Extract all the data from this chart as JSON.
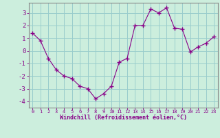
{
  "x": [
    0,
    1,
    2,
    3,
    4,
    5,
    6,
    7,
    8,
    9,
    10,
    11,
    12,
    13,
    14,
    15,
    16,
    17,
    18,
    19,
    20,
    21,
    22,
    23
  ],
  "y": [
    1.4,
    0.8,
    -0.6,
    -1.5,
    -2.0,
    -2.2,
    -2.8,
    -3.0,
    -3.8,
    -3.4,
    -2.8,
    -0.9,
    -0.6,
    2.0,
    2.0,
    3.3,
    3.0,
    3.4,
    1.8,
    1.7,
    -0.1,
    0.3,
    0.6,
    1.1
  ],
  "line_color": "#880088",
  "marker": "+",
  "marker_size": 5,
  "bg_color": "#cceedd",
  "grid_color": "#99cccc",
  "ylabel_ticks": [
    3,
    2,
    1,
    0,
    -1,
    -2,
    -3,
    -4
  ],
  "ylim": [
    -4.5,
    3.8
  ],
  "xlim": [
    -0.5,
    23.5
  ],
  "xlabel": "Windchill (Refroidissement éolien,°C)",
  "xtick_labels": [
    "0",
    "1",
    "2",
    "3",
    "4",
    "5",
    "6",
    "7",
    "8",
    "9",
    "10",
    "11",
    "12",
    "13",
    "14",
    "15",
    "16",
    "17",
    "18",
    "19",
    "20",
    "21",
    "22",
    "23"
  ],
  "tick_label_color": "#880088",
  "xlabel_color": "#880088",
  "spine_color": "#888888"
}
